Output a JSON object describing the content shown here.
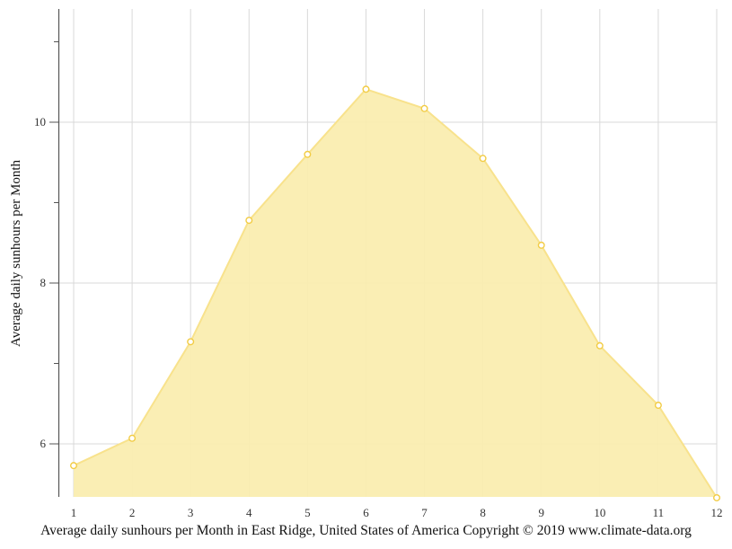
{
  "chart_data": {
    "type": "area",
    "title": "Average daily sunhours per Month in East Ridge, United States of America Copyright © 2019 www.climate-data.org",
    "xlabel": "",
    "ylabel": "Average daily sunhours per Month",
    "categories": [
      "1",
      "2",
      "3",
      "4",
      "5",
      "6",
      "7",
      "8",
      "9",
      "10",
      "11",
      "12"
    ],
    "x": [
      1,
      2,
      3,
      4,
      5,
      6,
      7,
      8,
      9,
      10,
      11,
      12
    ],
    "series": [
      {
        "name": "Average daily sunhours",
        "values": [
          5.73,
          6.07,
          7.27,
          8.78,
          9.6,
          10.41,
          10.17,
          9.55,
          8.47,
          7.22,
          6.48,
          5.33
        ]
      }
    ],
    "ylim": [
      5.34,
      11.4
    ],
    "xlim": [
      1,
      12
    ],
    "y_major_ticks": [
      6,
      8,
      10
    ],
    "y_minor_ticks": [
      7,
      9,
      11
    ],
    "grid": true,
    "legend": "none",
    "colors": {
      "fill": "#faedb0",
      "line": "#f8e28c",
      "marker_stroke": "#f2cc45",
      "marker_fill": "#ffffff",
      "grid": "#d9d9d9",
      "axis": "#555555"
    }
  },
  "caption": "Average daily sunhours per Month in East Ridge, United States of America Copyright © 2019 www.climate-data.org",
  "y_axis_title": "Average daily sunhours per Month"
}
